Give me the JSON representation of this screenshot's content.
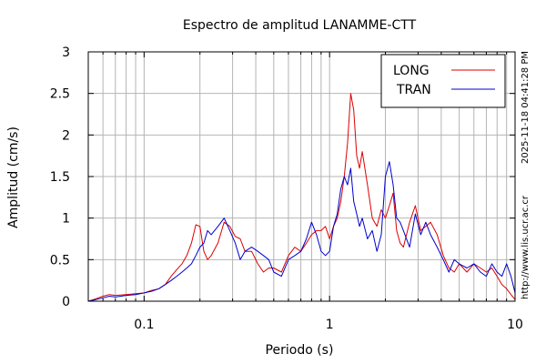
{
  "chart_data": {
    "type": "line",
    "title": "Espectro de amplitud LANAMME-CTT",
    "xlabel": "Periodo (s)",
    "ylabel": "Amplitud (cm/s)",
    "x_scale": "log",
    "xlim": [
      0.05,
      10
    ],
    "ylim": [
      0,
      3
    ],
    "x_tick_labels": [
      {
        "value": 0.1,
        "label": "0.1"
      },
      {
        "value": 1,
        "label": "1"
      },
      {
        "value": 10,
        "label": "10"
      }
    ],
    "y_tick_labels": [
      {
        "value": 0,
        "label": "0"
      },
      {
        "value": 0.5,
        "label": "0.5"
      },
      {
        "value": 1,
        "label": "1"
      },
      {
        "value": 1.5,
        "label": "1.5"
      },
      {
        "value": 2,
        "label": "2"
      },
      {
        "value": 2.5,
        "label": "2.5"
      },
      {
        "value": 3,
        "label": "3"
      }
    ],
    "grid": true,
    "legend_position": "top-right",
    "timestamp": "2025-11-18 04:41:28 PM",
    "website": "http://www.lis.ucr.ac.cr",
    "series": [
      {
        "name": "LONG",
        "color": "#dd0000",
        "x": [
          0.05,
          0.055,
          0.06,
          0.065,
          0.07,
          0.08,
          0.09,
          0.1,
          0.11,
          0.12,
          0.13,
          0.14,
          0.15,
          0.16,
          0.17,
          0.18,
          0.19,
          0.2,
          0.21,
          0.22,
          0.23,
          0.25,
          0.27,
          0.29,
          0.31,
          0.33,
          0.35,
          0.38,
          0.41,
          0.44,
          0.47,
          0.5,
          0.55,
          0.6,
          0.65,
          0.7,
          0.75,
          0.8,
          0.85,
          0.9,
          0.95,
          1.0,
          1.05,
          1.1,
          1.15,
          1.2,
          1.25,
          1.3,
          1.35,
          1.4,
          1.45,
          1.5,
          1.6,
          1.7,
          1.8,
          1.9,
          2.0,
          2.1,
          2.2,
          2.3,
          2.4,
          2.5,
          2.7,
          2.9,
          3.1,
          3.3,
          3.5,
          3.8,
          4.1,
          4.4,
          4.7,
          5.0,
          5.5,
          6.0,
          6.5,
          7.0,
          7.5,
          8.0,
          8.5,
          9.0,
          9.5,
          10.0
        ],
        "y": [
          0.0,
          0.03,
          0.06,
          0.08,
          0.07,
          0.08,
          0.09,
          0.1,
          0.13,
          0.15,
          0.2,
          0.3,
          0.38,
          0.45,
          0.55,
          0.7,
          0.92,
          0.9,
          0.6,
          0.5,
          0.55,
          0.7,
          0.95,
          0.9,
          0.78,
          0.75,
          0.6,
          0.6,
          0.45,
          0.35,
          0.4,
          0.4,
          0.35,
          0.55,
          0.65,
          0.6,
          0.7,
          0.8,
          0.85,
          0.85,
          0.9,
          0.75,
          0.9,
          1.0,
          1.2,
          1.5,
          1.9,
          2.5,
          2.3,
          1.75,
          1.6,
          1.8,
          1.4,
          1.0,
          0.9,
          1.1,
          1.0,
          1.15,
          1.3,
          0.85,
          0.7,
          0.65,
          0.95,
          1.15,
          0.85,
          0.9,
          0.95,
          0.8,
          0.55,
          0.4,
          0.35,
          0.45,
          0.35,
          0.45,
          0.4,
          0.35,
          0.4,
          0.3,
          0.2,
          0.15,
          0.08,
          0.02
        ]
      },
      {
        "name": "TRAN",
        "color": "#0000cc",
        "x": [
          0.05,
          0.055,
          0.06,
          0.065,
          0.07,
          0.08,
          0.09,
          0.1,
          0.11,
          0.12,
          0.13,
          0.14,
          0.15,
          0.16,
          0.17,
          0.18,
          0.19,
          0.2,
          0.21,
          0.22,
          0.23,
          0.25,
          0.27,
          0.29,
          0.31,
          0.33,
          0.35,
          0.38,
          0.41,
          0.44,
          0.47,
          0.5,
          0.55,
          0.6,
          0.65,
          0.7,
          0.75,
          0.8,
          0.85,
          0.9,
          0.95,
          1.0,
          1.05,
          1.1,
          1.15,
          1.2,
          1.25,
          1.3,
          1.35,
          1.4,
          1.45,
          1.5,
          1.6,
          1.7,
          1.8,
          1.9,
          2.0,
          2.1,
          2.2,
          2.3,
          2.4,
          2.5,
          2.7,
          2.9,
          3.1,
          3.3,
          3.5,
          3.8,
          4.1,
          4.4,
          4.7,
          5.0,
          5.5,
          6.0,
          6.5,
          7.0,
          7.5,
          8.0,
          8.5,
          9.0,
          9.5,
          10.0
        ],
        "y": [
          0.0,
          0.02,
          0.04,
          0.06,
          0.05,
          0.07,
          0.08,
          0.1,
          0.12,
          0.15,
          0.2,
          0.25,
          0.3,
          0.35,
          0.4,
          0.45,
          0.55,
          0.65,
          0.7,
          0.85,
          0.8,
          0.9,
          1.0,
          0.85,
          0.7,
          0.5,
          0.6,
          0.65,
          0.6,
          0.55,
          0.5,
          0.35,
          0.3,
          0.5,
          0.55,
          0.6,
          0.75,
          0.95,
          0.8,
          0.6,
          0.55,
          0.6,
          0.9,
          1.05,
          1.35,
          1.5,
          1.4,
          1.6,
          1.2,
          1.05,
          0.9,
          1.0,
          0.75,
          0.85,
          0.6,
          0.8,
          1.5,
          1.68,
          1.4,
          1.0,
          0.95,
          0.85,
          0.65,
          1.05,
          0.8,
          0.95,
          0.8,
          0.65,
          0.5,
          0.35,
          0.5,
          0.45,
          0.4,
          0.45,
          0.35,
          0.3,
          0.45,
          0.35,
          0.3,
          0.45,
          0.3,
          0.1
        ]
      }
    ]
  }
}
